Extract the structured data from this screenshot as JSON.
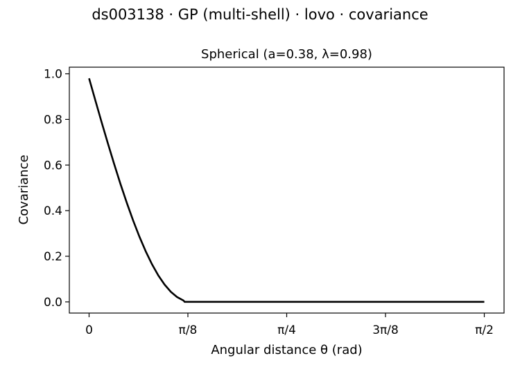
{
  "figure": {
    "suptitle": "ds003138 · GP (multi-shell) · lovo · covariance"
  },
  "chart_data": {
    "type": "line",
    "title": "Spherical (a=0.38, λ=0.98)",
    "xlabel": "Angular distance θ (rad)",
    "ylabel": "Covariance",
    "kernel": "spherical",
    "a": 0.38,
    "lambda": 0.98,
    "xlim": [
      -0.0785,
      1.6493
    ],
    "ylim": [
      -0.049,
      1.029
    ],
    "xticks": [
      0,
      0.3927,
      0.7854,
      1.1781,
      1.5708
    ],
    "xtick_labels": [
      "0",
      "π/8",
      "π/4",
      "3π/8",
      "π/2"
    ],
    "yticks": [
      0.0,
      0.2,
      0.4,
      0.6,
      0.8,
      1.0
    ],
    "ytick_labels": [
      "0.0",
      "0.2",
      "0.4",
      "0.6",
      "0.8",
      "1.0"
    ],
    "grid": false,
    "legend": "none",
    "series": [
      {
        "color": "#000000",
        "x": [
          0,
          0.025,
          0.05,
          0.075,
          0.1,
          0.125,
          0.15,
          0.175,
          0.2,
          0.225,
          0.25,
          0.275,
          0.3,
          0.325,
          0.35,
          0.375,
          0.38,
          0.4,
          0.5,
          0.6,
          0.8,
          1.0,
          1.2,
          1.4,
          1.5708
        ],
        "y": [
          0.98,
          0.883,
          0.787,
          0.694,
          0.603,
          0.516,
          0.434,
          0.357,
          0.286,
          0.222,
          0.165,
          0.116,
          0.076,
          0.044,
          0.021,
          0.006,
          0.0,
          0.0,
          0.0,
          0.0,
          0.0,
          0.0,
          0.0,
          0.0,
          0.0
        ]
      }
    ]
  }
}
